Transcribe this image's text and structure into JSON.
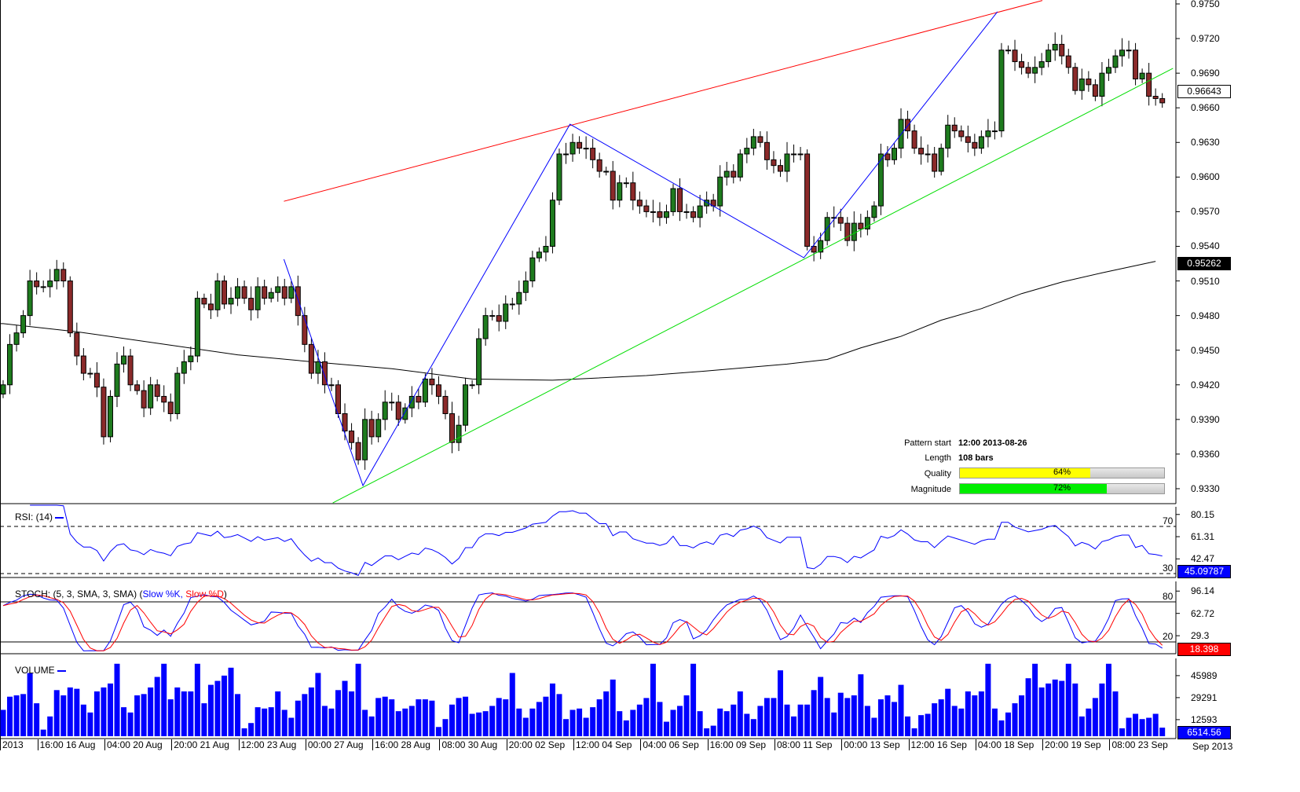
{
  "chart_data": {
    "type": "candlestick",
    "instrument_period": "Sep 2013",
    "price_axis": {
      "ylim": [
        0.9315,
        0.9753
      ],
      "ticks": [
        "0.9750",
        "0.9720",
        "0.9690",
        "0.9660",
        "0.9630",
        "0.9600",
        "0.9570",
        "0.9540",
        "0.9510",
        "0.9480",
        "0.9450",
        "0.9420",
        "0.9390",
        "0.9360",
        "0.9330"
      ]
    },
    "last_price": "0.96643",
    "ma_value": "0.95262",
    "closes": [
      0.942,
      0.9455,
      0.9465,
      0.948,
      0.951,
      0.9505,
      0.9505,
      0.951,
      0.952,
      0.951,
      0.9465,
      0.9445,
      0.943,
      0.943,
      0.9418,
      0.9375,
      0.941,
      0.9438,
      0.9445,
      0.942,
      0.9415,
      0.94,
      0.942,
      0.941,
      0.9405,
      0.9395,
      0.943,
      0.944,
      0.9445,
      0.9495,
      0.949,
      0.9485,
      0.951,
      0.949,
      0.9495,
      0.9505,
      0.9495,
      0.9485,
      0.9505,
      0.9495,
      0.95,
      0.9505,
      0.9495,
      0.9505,
      0.948,
      0.9455,
      0.943,
      0.944,
      0.942,
      0.942,
      0.9395,
      0.938,
      0.937,
      0.9355,
      0.939,
      0.9375,
      0.939,
      0.9405,
      0.9405,
      0.939,
      0.94,
      0.941,
      0.9405,
      0.9425,
      0.942,
      0.941,
      0.9395,
      0.937,
      0.9385,
      0.942,
      0.942,
      0.946,
      0.948,
      0.948,
      0.9475,
      0.949,
      0.949,
      0.95,
      0.951,
      0.953,
      0.9535,
      0.954,
      0.958,
      0.962,
      0.962,
      0.963,
      0.9625,
      0.9625,
      0.9615,
      0.9605,
      0.9605,
      0.958,
      0.9595,
      0.9595,
      0.958,
      0.9575,
      0.957,
      0.957,
      0.9565,
      0.957,
      0.959,
      0.957,
      0.957,
      0.9565,
      0.9575,
      0.958,
      0.9575,
      0.96,
      0.9605,
      0.96,
      0.962,
      0.9625,
      0.9635,
      0.963,
      0.9615,
      0.961,
      0.9605,
      0.962,
      0.962,
      0.962,
      0.954,
      0.9535,
      0.9545,
      0.9565,
      0.9565,
      0.956,
      0.9545,
      0.956,
      0.9555,
      0.9565,
      0.9575,
      0.962,
      0.9615,
      0.9625,
      0.965,
      0.964,
      0.9625,
      0.962,
      0.962,
      0.9605,
      0.9625,
      0.9645,
      0.964,
      0.9635,
      0.963,
      0.9625,
      0.9635,
      0.964,
      0.964,
      0.971,
      0.971,
      0.97,
      0.9695,
      0.969,
      0.9695,
      0.97,
      0.971,
      0.9715,
      0.9705,
      0.9695,
      0.9675,
      0.9685,
      0.968,
      0.967,
      0.969,
      0.9695,
      0.9705,
      0.971,
      0.971,
      0.9685,
      0.969,
      0.967,
      0.9668,
      0.96643
    ],
    "moving_average": [
      [
        0,
        0.9473
      ],
      [
        11,
        0.9466
      ],
      [
        23,
        0.9456
      ],
      [
        35,
        0.9446
      ],
      [
        46,
        0.944
      ],
      [
        58,
        0.9434
      ],
      [
        70,
        0.9425
      ],
      [
        82,
        0.9424
      ],
      [
        96,
        0.9428
      ],
      [
        105,
        0.9432
      ],
      [
        117,
        0.9438
      ],
      [
        123,
        0.9442
      ],
      [
        128,
        0.9452
      ],
      [
        134,
        0.9462
      ],
      [
        140,
        0.9476
      ],
      [
        146,
        0.9486
      ],
      [
        152,
        0.9499
      ],
      [
        158,
        0.9509
      ],
      [
        164,
        0.9517
      ],
      [
        172,
        0.9527
      ]
    ],
    "trendlines": {
      "resistance": {
        "color": "#ff0000",
        "points": [
          [
            41.9,
            0.9579
          ],
          [
            155.1,
            0.9753
          ]
        ]
      },
      "support": {
        "color": "#00dd00",
        "points": [
          [
            49.2,
            0.93177
          ],
          [
            174.6,
            0.96942
          ]
        ]
      },
      "zigzag": {
        "color": "#0000ff",
        "points": [
          [
            41.9,
            0.95288
          ],
          [
            53.7,
            0.93327
          ],
          [
            84.6,
            0.96458
          ],
          [
            119.5,
            0.95301
          ],
          [
            148.4,
            0.97432
          ]
        ]
      }
    },
    "time_labels": [
      "2013",
      "16:00 16 Aug",
      "04:00 20 Aug",
      "20:00 21 Aug",
      "12:00 23 Aug",
      "00:00 27 Aug",
      "16:00 28 Aug",
      "08:00 30 Aug",
      "20:00 02 Sep",
      "12:00 04 Sep",
      "04:00 06 Sep",
      "16:00 09 Sep",
      "08:00 11 Sep",
      "00:00 13 Sep",
      "12:00 16 Sep",
      "04:00 18 Sep",
      "20:00 19 Sep",
      "08:00 23 Sep"
    ],
    "pattern": {
      "start_label": "Pattern start",
      "start_value": "12:00 2013-08-26",
      "length_label": "Length",
      "length_value": "108 bars",
      "quality_label": "Quality",
      "quality": 64,
      "quality_text": "64%",
      "magnitude_label": "Magnitude",
      "magnitude": 72,
      "magnitude_text": "72%"
    },
    "rsi": {
      "title": "RSI: (14)",
      "period": 14,
      "levels": [
        "70",
        "30"
      ],
      "ticks": [
        "80.15",
        "61.31",
        "42.47"
      ],
      "last": "45.09787"
    },
    "stoch": {
      "title": "STOCH: (5, 3, SMA, 3, SMA) (",
      "k_label": "Slow %K,",
      "d_label": "Slow %D",
      "close_paren": ")",
      "levels": [
        "80",
        "20"
      ],
      "ticks": [
        "96.14",
        "62.72",
        "29.3"
      ],
      "last": "18.398"
    },
    "volume": {
      "title": "VOLUME",
      "ticks": [
        "45989",
        "29291",
        "12593"
      ],
      "last": "6514.56",
      "values": [
        20,
        30,
        31,
        32,
        48,
        25,
        5,
        15,
        35,
        31,
        37,
        36,
        24,
        18,
        34,
        37,
        40,
        55,
        22,
        18,
        31,
        32,
        37,
        45,
        55,
        28,
        37,
        34,
        34,
        55,
        25,
        39,
        42,
        46,
        52,
        32,
        6,
        10,
        22,
        21,
        22,
        34,
        20,
        14,
        27,
        32,
        37,
        48,
        23,
        21,
        35,
        42,
        34,
        55,
        20,
        15,
        29,
        30,
        28,
        19,
        21,
        23,
        28,
        28,
        27,
        7,
        13,
        24,
        29,
        30,
        17,
        18,
        19,
        23,
        29,
        28,
        48,
        21,
        14,
        21,
        26,
        30,
        40,
        32,
        13,
        20,
        21,
        14,
        22,
        28,
        34,
        43,
        19,
        12,
        20,
        24,
        29,
        55,
        26,
        11,
        20,
        23,
        31,
        55,
        19,
        6,
        8,
        21,
        19,
        24,
        34,
        17,
        13,
        23,
        29,
        29,
        50,
        24,
        15,
        24,
        24,
        35,
        45,
        29,
        18,
        33,
        29,
        31,
        47,
        23,
        14,
        28,
        31,
        26,
        39,
        15,
        6,
        16,
        17,
        25,
        28,
        36,
        23,
        21,
        34,
        31,
        34,
        55,
        21,
        12,
        18,
        25,
        31,
        44,
        55,
        37,
        40,
        43,
        42,
        55,
        40,
        15,
        21,
        29,
        40,
        55,
        34,
        6,
        14,
        17,
        13,
        14,
        17,
        6.5
      ]
    },
    "colors": {
      "up": "#1e7b1e",
      "down": "#8b2a2a",
      "rsi": "#0000ff",
      "k": "#0000ff",
      "d": "#ff0000",
      "volume": "#0000ff",
      "quality": "#ffff00",
      "magnitude": "#00ee00"
    }
  }
}
